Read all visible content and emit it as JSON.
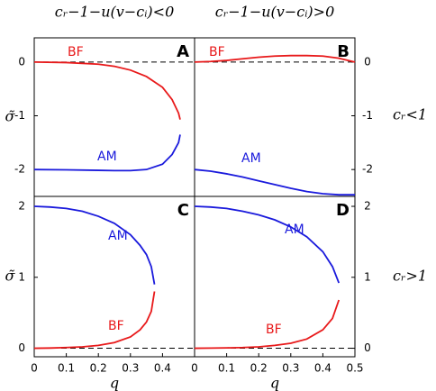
{
  "column_titles": [
    "cᵣ−1−u(v−cᵢ)<0",
    "cᵣ−1−u(v−cᵢ)>0"
  ],
  "row_titles": [
    "cᵣ<1",
    "cᵣ>1"
  ],
  "chart_data": [
    {
      "type": "line",
      "title": "A",
      "y_label": "σ̃",
      "yaxis_side": "left",
      "reference_line": 0,
      "xlim": [
        0,
        0.5
      ],
      "ylim": [
        -2.5,
        0.45
      ],
      "yticks": [
        0,
        -1,
        -2
      ],
      "series": [
        {
          "name": "BF",
          "color": "#e8191a",
          "x": [
            0,
            0.1,
            0.2,
            0.25,
            0.3,
            0.35,
            0.4,
            0.43,
            0.45,
            0.455
          ],
          "values": [
            0,
            -0.01,
            -0.04,
            -0.08,
            -0.15,
            -0.27,
            -0.47,
            -0.7,
            -0.95,
            -1.07
          ]
        },
        {
          "name": "AM",
          "color": "#1a1adc",
          "x": [
            0,
            0.1,
            0.2,
            0.25,
            0.3,
            0.35,
            0.4,
            0.43,
            0.45,
            0.455
          ],
          "values": [
            -2,
            -2.005,
            -2.015,
            -2.02,
            -2.02,
            -2,
            -1.9,
            -1.72,
            -1.5,
            -1.35
          ]
        }
      ]
    },
    {
      "type": "line",
      "title": "B",
      "yaxis_side": "right",
      "reference_line": 0,
      "xlim": [
        0,
        0.5
      ],
      "ylim": [
        -2.5,
        0.45
      ],
      "yticks": [
        0,
        -1,
        -2
      ],
      "series": [
        {
          "name": "BF",
          "color": "#e8191a",
          "x": [
            0,
            0.05,
            0.1,
            0.15,
            0.2,
            0.25,
            0.3,
            0.35,
            0.4,
            0.45,
            0.5
          ],
          "values": [
            0,
            0.01,
            0.03,
            0.06,
            0.09,
            0.11,
            0.12,
            0.12,
            0.11,
            0.07,
            0
          ]
        },
        {
          "name": "AM",
          "color": "#1a1adc",
          "x": [
            0,
            0.05,
            0.1,
            0.15,
            0.2,
            0.25,
            0.3,
            0.35,
            0.4,
            0.45,
            0.5
          ],
          "values": [
            -2,
            -2.03,
            -2.08,
            -2.14,
            -2.21,
            -2.28,
            -2.35,
            -2.41,
            -2.45,
            -2.47,
            -2.47
          ]
        }
      ]
    },
    {
      "type": "line",
      "title": "C",
      "y_label": "σ̃",
      "x_label": "q",
      "yaxis_side": "left",
      "reference_line": 0,
      "xlim": [
        0,
        0.5
      ],
      "ylim": [
        -0.12,
        2.14
      ],
      "yticks": [
        0,
        1,
        2
      ],
      "xticks": [
        0,
        0.1,
        0.2,
        0.3,
        0.4
      ],
      "series": [
        {
          "name": "AM",
          "color": "#1a1adc",
          "x": [
            0,
            0.05,
            0.1,
            0.15,
            0.2,
            0.25,
            0.3,
            0.33,
            0.35,
            0.365,
            0.375
          ],
          "values": [
            2,
            1.99,
            1.97,
            1.93,
            1.86,
            1.76,
            1.6,
            1.45,
            1.32,
            1.15,
            0.9
          ]
        },
        {
          "name": "BF",
          "color": "#e8191a",
          "x": [
            0,
            0.05,
            0.1,
            0.15,
            0.2,
            0.25,
            0.3,
            0.33,
            0.35,
            0.365,
            0.375
          ],
          "values": [
            0,
            0.003,
            0.01,
            0.02,
            0.04,
            0.08,
            0.16,
            0.26,
            0.37,
            0.52,
            0.8
          ]
        }
      ]
    },
    {
      "type": "line",
      "title": "D",
      "x_label": "q",
      "yaxis_side": "right",
      "reference_line": 0,
      "xlim": [
        0,
        0.5
      ],
      "ylim": [
        -0.12,
        2.14
      ],
      "yticks": [
        0,
        1,
        2
      ],
      "xticks": [
        0,
        0.1,
        0.2,
        0.3,
        0.4,
        0.5
      ],
      "series": [
        {
          "name": "AM",
          "color": "#1a1adc",
          "x": [
            0,
            0.05,
            0.1,
            0.15,
            0.2,
            0.25,
            0.3,
            0.35,
            0.4,
            0.43,
            0.45
          ],
          "values": [
            2,
            1.99,
            1.97,
            1.93,
            1.88,
            1.81,
            1.71,
            1.57,
            1.36,
            1.15,
            0.92
          ]
        },
        {
          "name": "BF",
          "color": "#e8191a",
          "x": [
            0,
            0.05,
            0.1,
            0.15,
            0.2,
            0.25,
            0.3,
            0.35,
            0.4,
            0.43,
            0.45
          ],
          "values": [
            0,
            0.002,
            0.005,
            0.01,
            0.02,
            0.04,
            0.07,
            0.13,
            0.26,
            0.42,
            0.68
          ]
        }
      ]
    }
  ]
}
